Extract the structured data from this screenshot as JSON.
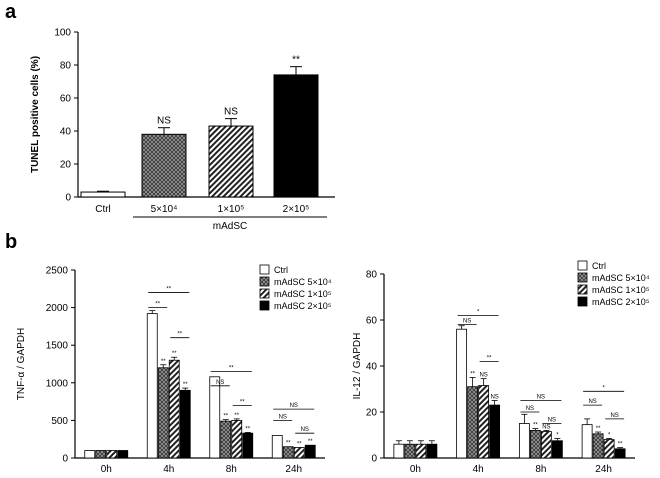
{
  "panels": {
    "a": "a",
    "b": "b"
  },
  "chart_data": [
    {
      "type": "bar",
      "id": "a",
      "ylabel": "TUNEL positive cells (%)",
      "ylim": [
        0,
        100
      ],
      "yticks": [
        "0",
        "20",
        "40",
        "60",
        "80",
        "100"
      ],
      "categories": [
        "Ctrl",
        "5×10⁴",
        "1×10⁵",
        "2×10⁵"
      ],
      "group_label": "mAdSC",
      "values": [
        3,
        38,
        43,
        74
      ],
      "errors": [
        0.5,
        4,
        4.5,
        5
      ],
      "significance": [
        "",
        "NS",
        "NS",
        "**"
      ],
      "fills": [
        "white",
        "crosshatch",
        "diagonal",
        "black"
      ]
    },
    {
      "type": "bar",
      "id": "b1",
      "ylabel": "TNF-α / GAPDH",
      "ylim": [
        0,
        2500
      ],
      "yticks": [
        "0",
        "500",
        "1000",
        "1500",
        "2000",
        "2500"
      ],
      "categories": [
        "0h",
        "4h",
        "8h",
        "24h"
      ],
      "legend": [
        "Ctrl",
        "mAdSC 5×10⁴",
        "mAdSC 1×10⁵",
        "mAdSC 2×10⁵"
      ],
      "series": [
        {
          "name": "Ctrl",
          "values": [
            100,
            1920,
            1080,
            300
          ],
          "errors": [
            0,
            40,
            0,
            0
          ]
        },
        {
          "name": "mAdSC 5×10⁴",
          "values": [
            100,
            1200,
            490,
            150
          ],
          "errors": [
            0,
            40,
            20,
            0
          ]
        },
        {
          "name": "mAdSC 1×10⁵",
          "values": [
            100,
            1300,
            500,
            140
          ],
          "errors": [
            0,
            40,
            20,
            0
          ]
        },
        {
          "name": "mAdSC 2×10⁵",
          "values": [
            100,
            900,
            330,
            170
          ],
          "errors": [
            0,
            30,
            10,
            0
          ]
        }
      ],
      "bar_marks": [
        [
          "",
          "",
          "",
          ""
        ],
        [
          "",
          "**",
          "**",
          "**"
        ],
        [
          "",
          "**",
          "**",
          "**"
        ],
        [
          "",
          "**",
          "**",
          "**"
        ]
      ],
      "brackets": [
        {
          "cat": 1,
          "from": 0,
          "to": 3,
          "y": 2200,
          "label": "**"
        },
        {
          "cat": 1,
          "from": 0,
          "to": 1,
          "y": 2000,
          "label": "**"
        },
        {
          "cat": 1,
          "from": 2,
          "to": 3,
          "y": 1600,
          "label": "**"
        },
        {
          "cat": 2,
          "from": 0,
          "to": 3,
          "y": 1150,
          "label": "**"
        },
        {
          "cat": 2,
          "from": 0,
          "to": 1,
          "y": 960,
          "label": "NS"
        },
        {
          "cat": 2,
          "from": 2,
          "to": 3,
          "y": 700,
          "label": "**"
        },
        {
          "cat": 3,
          "from": 0,
          "to": 3,
          "y": 650,
          "label": "NS"
        },
        {
          "cat": 3,
          "from": 0,
          "to": 1,
          "y": 500,
          "label": "NS"
        },
        {
          "cat": 3,
          "from": 2,
          "to": 3,
          "y": 330,
          "label": "NS"
        }
      ]
    },
    {
      "type": "bar",
      "id": "b2",
      "ylabel": "IL-12 / GAPDH",
      "ylim": [
        0,
        80
      ],
      "yticks": [
        "0",
        "20",
        "40",
        "60",
        "80"
      ],
      "categories": [
        "0h",
        "4h",
        "8h",
        "24h"
      ],
      "legend": [
        "Ctrl",
        "mAdSC 5×10⁴",
        "mAdSC 1×10⁵",
        "mAdSC 2×10⁵"
      ],
      "series": [
        {
          "name": "Ctrl",
          "values": [
            6,
            56,
            15,
            14.5
          ],
          "errors": [
            1.5,
            1.5,
            4,
            2.5
          ]
        },
        {
          "name": "mAdSC 5×10⁴",
          "values": [
            6,
            31,
            12,
            10.5
          ],
          "errors": [
            1.5,
            4,
            0.8,
            0.8
          ]
        },
        {
          "name": "mAdSC 1×10⁵",
          "values": [
            6,
            31.5,
            11.5,
            8
          ],
          "errors": [
            1.5,
            3,
            0.5,
            0.5
          ]
        },
        {
          "name": "mAdSC 2×10⁵",
          "values": [
            6,
            23,
            7.5,
            4
          ],
          "errors": [
            1.5,
            2,
            1,
            0.5
          ]
        }
      ],
      "bar_marks": [
        [
          "",
          "",
          "",
          ""
        ],
        [
          "",
          "**",
          "**",
          "**"
        ],
        [
          "",
          "NS",
          "NS",
          "*"
        ],
        [
          "",
          "NS",
          "*",
          "**"
        ]
      ],
      "brackets": [
        {
          "cat": 1,
          "from": 0,
          "to": 3,
          "y": 62,
          "label": "*"
        },
        {
          "cat": 1,
          "from": 0,
          "to": 1,
          "y": 58,
          "label": "NS"
        },
        {
          "cat": 1,
          "from": 2,
          "to": 3,
          "y": 42,
          "label": "**"
        },
        {
          "cat": 2,
          "from": 0,
          "to": 3,
          "y": 25,
          "label": "NS"
        },
        {
          "cat": 2,
          "from": 0,
          "to": 1,
          "y": 20,
          "label": "NS"
        },
        {
          "cat": 2,
          "from": 2,
          "to": 3,
          "y": 15,
          "label": "NS"
        },
        {
          "cat": 3,
          "from": 0,
          "to": 3,
          "y": 29,
          "label": "*"
        },
        {
          "cat": 3,
          "from": 0,
          "to": 1,
          "y": 23,
          "label": "NS"
        },
        {
          "cat": 3,
          "from": 2,
          "to": 3,
          "y": 17,
          "label": "NS"
        }
      ]
    }
  ]
}
